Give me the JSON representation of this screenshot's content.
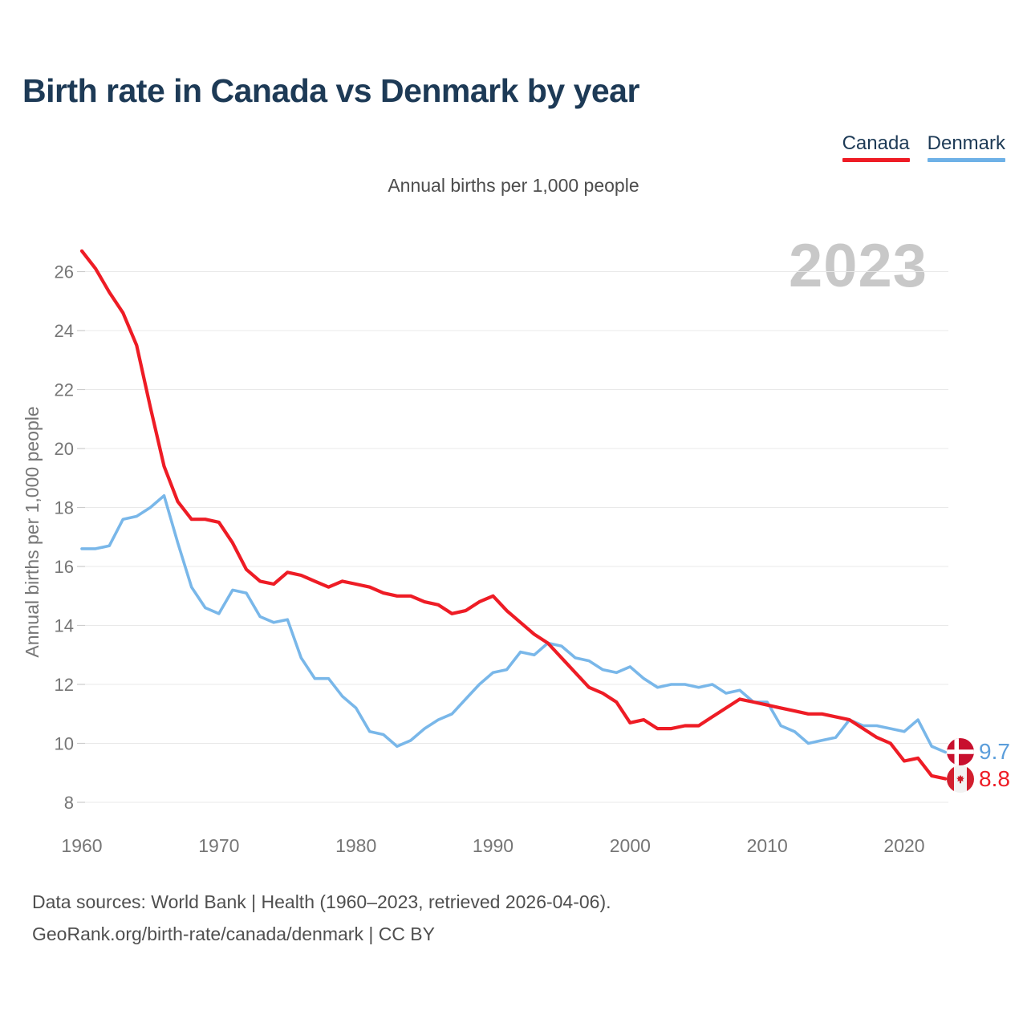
{
  "title": "Birth rate in Canada vs Denmark by year",
  "subtitle": "Annual births per 1,000 people",
  "watermark": "2023",
  "legend": {
    "items": [
      {
        "label": "Canada",
        "color": "#ee1c25"
      },
      {
        "label": "Denmark",
        "color": "#6eb1e7"
      }
    ]
  },
  "end_labels": [
    {
      "series": "Denmark",
      "value": "9.7",
      "text_color": "#5c9edb",
      "flag": "denmark-flag"
    },
    {
      "series": "Canada",
      "value": "8.8",
      "text_color": "#ee1c25",
      "flag": "canada-flag"
    }
  ],
  "footer": {
    "line1": "Data sources: World Bank | Health (1960–2023, retrieved 2026-04-06).",
    "line2": "GeoRank.org/birth-rate/canada/denmark | CC BY"
  },
  "chart_data": {
    "type": "line",
    "title": "Birth rate in Canada vs Denmark by year",
    "subtitle": "Annual births per 1,000 people",
    "xlabel": "",
    "ylabel": "Annual births per 1,000 people",
    "ylim": [
      8,
      26
    ],
    "xlim": [
      1960,
      2023
    ],
    "grid": "horizontal",
    "legend_position": "top-right",
    "y_ticks": [
      8,
      10,
      12,
      14,
      16,
      18,
      20,
      22,
      24,
      26
    ],
    "x_ticks": [
      1960,
      1970,
      1980,
      1990,
      2000,
      2010,
      2020
    ],
    "x": [
      1960,
      1961,
      1962,
      1963,
      1964,
      1965,
      1966,
      1967,
      1968,
      1969,
      1970,
      1971,
      1972,
      1973,
      1974,
      1975,
      1976,
      1977,
      1978,
      1979,
      1980,
      1981,
      1982,
      1983,
      1984,
      1985,
      1986,
      1987,
      1988,
      1989,
      1990,
      1991,
      1992,
      1993,
      1994,
      1995,
      1996,
      1997,
      1998,
      1999,
      2000,
      2001,
      2002,
      2003,
      2004,
      2005,
      2006,
      2007,
      2008,
      2009,
      2010,
      2011,
      2012,
      2013,
      2014,
      2015,
      2016,
      2017,
      2018,
      2019,
      2020,
      2021,
      2022,
      2023
    ],
    "series": [
      {
        "name": "Denmark",
        "color": "#79b7e9",
        "stroke_width": 3.6,
        "last_value_label": "9.7",
        "values": [
          16.6,
          16.6,
          16.7,
          17.6,
          17.7,
          18.0,
          18.4,
          16.8,
          15.3,
          14.6,
          14.4,
          15.2,
          15.1,
          14.3,
          14.1,
          14.2,
          12.9,
          12.2,
          12.2,
          11.6,
          11.2,
          10.4,
          10.3,
          9.9,
          10.1,
          10.5,
          10.8,
          11.0,
          11.5,
          12.0,
          12.4,
          12.5,
          13.1,
          13.0,
          13.4,
          13.3,
          12.9,
          12.8,
          12.5,
          12.4,
          12.6,
          12.2,
          11.9,
          12.0,
          12.0,
          11.9,
          12.0,
          11.7,
          11.8,
          11.4,
          11.4,
          10.6,
          10.4,
          10.0,
          10.1,
          10.2,
          10.8,
          10.6,
          10.6,
          10.5,
          10.4,
          10.8,
          9.9,
          9.7
        ]
      },
      {
        "name": "Canada",
        "color": "#ee1c25",
        "stroke_width": 4.2,
        "last_value_label": "8.8",
        "values": [
          26.7,
          26.1,
          25.3,
          24.6,
          23.5,
          21.4,
          19.4,
          18.2,
          17.6,
          17.6,
          17.5,
          16.8,
          15.9,
          15.5,
          15.4,
          15.8,
          15.7,
          15.5,
          15.3,
          15.5,
          15.4,
          15.3,
          15.1,
          15.0,
          15.0,
          14.8,
          14.7,
          14.4,
          14.5,
          14.8,
          15.0,
          14.5,
          14.1,
          13.7,
          13.4,
          12.9,
          12.4,
          11.9,
          11.7,
          11.4,
          10.7,
          10.8,
          10.5,
          10.5,
          10.6,
          10.6,
          10.9,
          11.2,
          11.5,
          11.4,
          11.3,
          11.2,
          11.1,
          11.0,
          11.0,
          10.9,
          10.8,
          10.5,
          10.2,
          10.0,
          9.4,
          9.5,
          8.9,
          8.8
        ]
      }
    ]
  }
}
